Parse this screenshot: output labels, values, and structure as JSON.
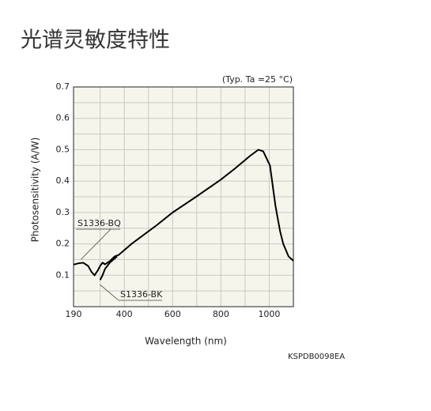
{
  "chart_data": {
    "type": "line",
    "title": "光谱灵敏度特性",
    "note": "(Typ. Ta =25 °C)",
    "code": "KSPDB0098EA",
    "x_label": "Wavelength (nm)",
    "y_label": "Photosensitivity (A/W)",
    "xlim": [
      190,
      1100
    ],
    "xticks": [
      190,
      400,
      600,
      800,
      1000
    ],
    "xminor_ticks": [
      300,
      500,
      700,
      900
    ],
    "ylim": [
      0,
      0.7
    ],
    "yticks": [
      0.1,
      0.2,
      0.3,
      0.4,
      0.5,
      0.6,
      0.7
    ],
    "yminor_ticks": [
      0.05,
      0.15,
      0.25,
      0.35,
      0.45,
      0.55,
      0.65
    ],
    "grid": true,
    "series": [
      {
        "name": "S1336-BQ",
        "color": "#000000",
        "x": [
          190,
          210,
          230,
          250,
          265,
          277,
          290,
          300,
          310,
          320,
          340,
          360,
          377,
          430,
          535,
          600,
          697,
          800,
          858,
          920,
          955,
          975,
          1003,
          1026,
          1045,
          1058,
          1080,
          1100
        ],
        "values": [
          0.134,
          0.138,
          0.14,
          0.13,
          0.11,
          0.1,
          0.115,
          0.13,
          0.14,
          0.135,
          0.145,
          0.16,
          0.165,
          0.2,
          0.26,
          0.3,
          0.35,
          0.405,
          0.44,
          0.48,
          0.5,
          0.495,
          0.45,
          0.32,
          0.24,
          0.2,
          0.16,
          0.146
        ]
      },
      {
        "name": "S1336-BK",
        "color": "#000000",
        "x": [
          300,
          310,
          320,
          340,
          355,
          370
        ],
        "values": [
          0.085,
          0.1,
          0.12,
          0.14,
          0.15,
          0.16
        ]
      }
    ]
  }
}
